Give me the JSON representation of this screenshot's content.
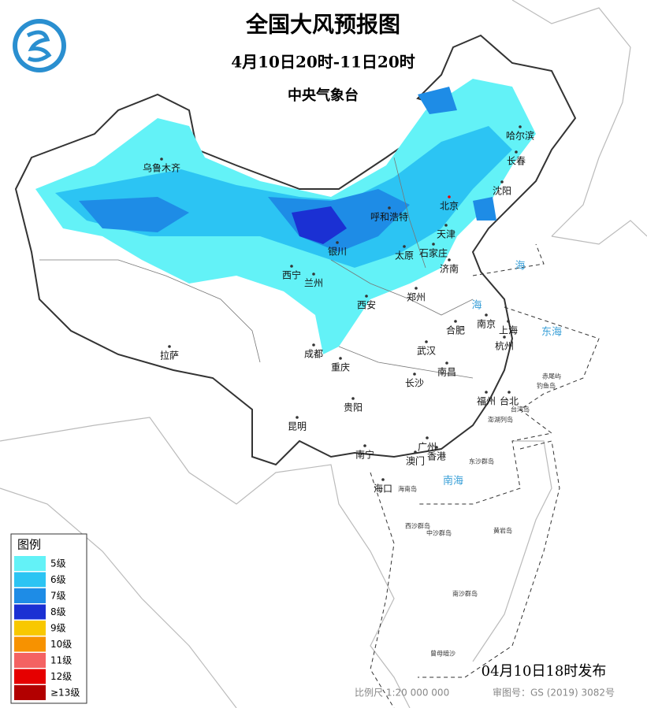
{
  "header": {
    "title": "全国大风预报图",
    "period": "4月10日20时-11日20时",
    "issuer": "中央气象台"
  },
  "legend": {
    "title": "图例",
    "items": [
      {
        "label": "5级",
        "color": "#63f2f7"
      },
      {
        "label": "6级",
        "color": "#2cc4f3"
      },
      {
        "label": "7级",
        "color": "#1e8ce6"
      },
      {
        "label": "8级",
        "color": "#1b30d3"
      },
      {
        "label": "9级",
        "color": "#f8c800"
      },
      {
        "label": "10级",
        "color": "#f79200"
      },
      {
        "label": "11级",
        "color": "#f46262"
      },
      {
        "label": "12级",
        "color": "#e60000"
      },
      {
        "label": "≥13级",
        "color": "#b20000"
      }
    ]
  },
  "cities": [
    "乌鲁木齐",
    "哈尔滨",
    "长春",
    "沈阳",
    "北京",
    "天津",
    "呼和浩特",
    "银川",
    "太原",
    "石家庄",
    "济南",
    "西宁",
    "兰州",
    "西安",
    "郑州",
    "合肥",
    "南京",
    "上海",
    "杭州",
    "武汉",
    "成都",
    "重庆",
    "南昌",
    "长沙",
    "拉萨",
    "贵阳",
    "昆明",
    "福州",
    "台北",
    "南宁",
    "广州",
    "澳门",
    "香港",
    "海口"
  ],
  "seas": [
    "东海",
    "南海",
    "海",
    "海"
  ],
  "islands": [
    "赤尾屿",
    "钓鱼岛",
    "台湾岛",
    "澎湖列岛",
    "东沙群岛",
    "海南岛",
    "中沙群岛",
    "黄岩岛",
    "西沙群岛",
    "南沙群岛",
    "曾母暗沙"
  ],
  "footer": {
    "issued": "04月10日18时发布",
    "scale": "比例尺 1:20 000 000",
    "approval": "审图号：GS (2019) 3082号"
  }
}
